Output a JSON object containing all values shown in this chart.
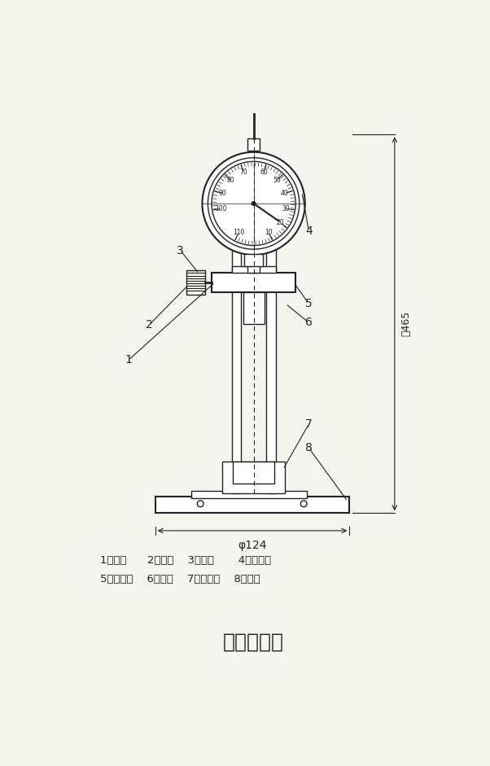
{
  "title": "比长仪简图",
  "title_fontsize": 18,
  "legend_line1": "1、立柱      2、螺钉    3、螺钉       4、百分表",
  "legend_line2": "5、夹持架    6、顶脚    7、下支承    8、底座",
  "bg_color": "#f5f5f0",
  "line_color": "#222222",
  "dim_label_465": "约465",
  "dim_label_124": "φ124"
}
